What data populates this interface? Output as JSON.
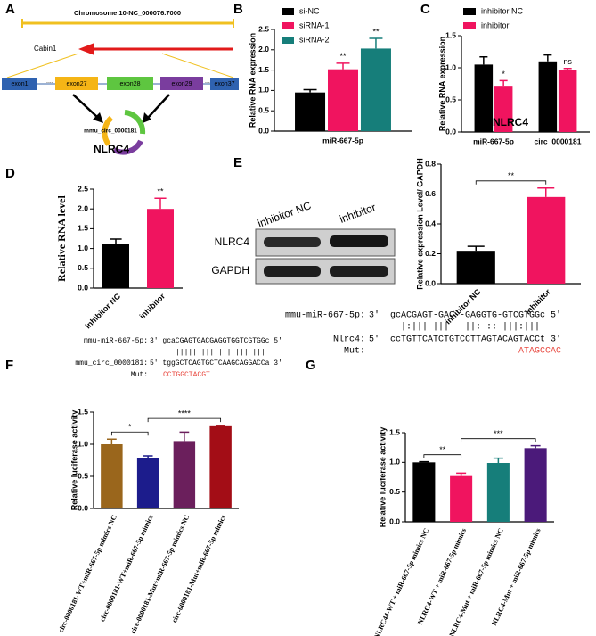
{
  "panel_labels": [
    "A",
    "B",
    "C",
    "D",
    "E",
    "F",
    "G"
  ],
  "panel_a": {
    "chromosome": "Chromosome 10-NC_000076.7000",
    "gene": "Cabin1",
    "exons": [
      "exon1",
      "....",
      "exon27",
      "exon28",
      "exon29",
      "....",
      "exon37"
    ],
    "circ": "mmu_circ_0000181"
  },
  "panel_e_blot": {
    "lanes": [
      "inhibitor NC",
      "inhibitor"
    ],
    "proteins": [
      "NLRC4",
      "GAPDH"
    ]
  },
  "panel_f_sequence": {
    "mirna": {
      "name": "mmu-miR-667-5p:",
      "text": "3' gcaCGAGTGACGAGGTGGTCGTGGc 5'"
    },
    "pairing": "||||| ||||| | ||| |||",
    "target": {
      "name": "mmu_circ_0000181:",
      "text": "5' tggGCTCAGTGCTCAAGCAGGACCa 3'"
    },
    "mut": {
      "name": "Mut:",
      "text": "CCTGGCTACGT"
    }
  },
  "panel_g_sequence": {
    "mirna": {
      "name": "mmu-miR-667-5p:",
      "text": "3'  gcACGAGT-GAC--GAGGTG-GTCGTGGc 5'"
    },
    "pairing": "|:||| |||   ||: :: |||:|||",
    "target": {
      "name": "Nlrc4:",
      "text": "5'  ccTGTTCATCTGTCCTTAGTACAGTACCt 3'"
    },
    "mut": {
      "name": "Mut:",
      "text": "ATAGCCAC"
    }
  },
  "chart_data": [
    {
      "type": "bar",
      "ylabel": "Relative RNA expression",
      "categories": [
        "miR-667-5p"
      ],
      "series": [
        {
          "name": "si-NC",
          "color": "#000000",
          "values": [
            0.95
          ],
          "errors": [
            0.07
          ],
          "significance": [
            null
          ]
        },
        {
          "name": "siRNA-1",
          "color": "#f0145f",
          "values": [
            1.52
          ],
          "errors": [
            0.15
          ],
          "significance": [
            "**"
          ]
        },
        {
          "name": "siRNA-2",
          "color": "#167e7a",
          "values": [
            2.03
          ],
          "errors": [
            0.25
          ],
          "significance": [
            "**"
          ]
        }
      ],
      "ylim": [
        0,
        2.5
      ],
      "yticks": [
        {
          "value": 0,
          "label": "0.0"
        },
        0.5,
        {
          "value": 1,
          "label": "1.0"
        },
        1.5,
        {
          "value": 2,
          "label": "2.0"
        },
        2.5
      ]
    },
    {
      "type": "bar",
      "ylabel": "Relative RNA expression",
      "categories": [
        "miR-667-5p",
        "circ_0000181"
      ],
      "series": [
        {
          "name": "inhibitor NC",
          "color": "#000000",
          "values": [
            1.05,
            1.1
          ],
          "errors": [
            0.12,
            0.1
          ],
          "significance": [
            null,
            null
          ]
        },
        {
          "name": "inhibitor",
          "color": "#f0145f",
          "values": [
            0.72,
            0.97
          ],
          "errors": [
            0.08,
            0.02
          ],
          "significance": [
            "*",
            "ns"
          ]
        }
      ],
      "ylim": [
        0,
        1.5
      ],
      "yticks": [
        {
          "value": 0,
          "label": "0.0"
        },
        0.5,
        {
          "value": 1,
          "label": "1.0"
        },
        1.5
      ]
    },
    {
      "type": "bar",
      "title": "NLRC4",
      "ylabel": "Relative RNA level",
      "categories": [
        "inhibitor NC",
        "inhibitor"
      ],
      "values": [
        1.12,
        2.0
      ],
      "errors": [
        0.12,
        0.27
      ],
      "colors": [
        "#000000",
        "#f0145f"
      ],
      "significance": [
        null,
        "**"
      ],
      "ylim": [
        0,
        2.5
      ],
      "yticks": [
        {
          "value": 0,
          "label": "0.0"
        },
        0.5,
        {
          "value": 1,
          "label": "1.0"
        },
        1.5,
        {
          "value": 2,
          "label": "2.0"
        },
        2.5
      ]
    },
    {
      "type": "bar",
      "title": "NLRC4",
      "ylabel": "Relative expression Level/ GAPDH",
      "categories": [
        "inhibitor NC",
        "inhibitor"
      ],
      "values": [
        0.22,
        0.58
      ],
      "errors": [
        0.03,
        0.06
      ],
      "colors": [
        "#000000",
        "#f0145f"
      ],
      "brackets": [
        {
          "label": "**",
          "span": [
            0,
            1
          ]
        }
      ],
      "ylim": [
        0,
        0.8
      ],
      "yticks": [
        {
          "value": 0,
          "label": "0.0"
        },
        0.2,
        0.4,
        0.6,
        0.8
      ]
    },
    {
      "type": "bar",
      "ylabel": "Relative luciferase activity",
      "categories": [
        "circ-0000181-WT+miR-667-5p mimics NC",
        "circ-0000181-WT+miR-667-5p mimics",
        "circ-0000181-Mut+miR-667-5p mimics NC",
        "circ-0000181-Mut+miR-667-5p mimics"
      ],
      "values": [
        1.0,
        0.79,
        1.05,
        1.28
      ],
      "errors": [
        0.08,
        0.03,
        0.14,
        0.01
      ],
      "colors": [
        "#9a661c",
        "#1c1c8c",
        "#6b1f5c",
        "#a30d16"
      ],
      "brackets": [
        {
          "label": "*",
          "span": [
            0,
            1
          ]
        },
        {
          "label": "****",
          "span": [
            1,
            3
          ]
        }
      ],
      "ylim": [
        0,
        1.5
      ],
      "yticks": [
        {
          "value": 0,
          "label": "0.0"
        },
        0.5,
        {
          "value": 1,
          "label": "1.0"
        },
        1.5
      ]
    },
    {
      "type": "bar",
      "ylabel": "Relative luciferase activity",
      "categories": [
        "NLRC44-WT + miR-667-5p mimics NC",
        "NLRC4-WT + miR-667-5p mimics",
        "NLRC4-Mut + miR-667-5p mimics NC",
        "NLRC4-Mut + miR-667-5p mimics"
      ],
      "values": [
        1.0,
        0.77,
        0.99,
        1.24
      ],
      "errors": [
        0.01,
        0.05,
        0.08,
        0.04
      ],
      "colors": [
        "#000000",
        "#f0145f",
        "#167e7a",
        "#4b1a7a"
      ],
      "brackets": [
        {
          "label": "**",
          "span": [
            0,
            1
          ]
        },
        {
          "label": "***",
          "span": [
            1,
            3
          ]
        }
      ],
      "ylim": [
        0,
        1.5
      ],
      "yticks": [
        {
          "value": 0,
          "label": "0.0"
        },
        0.5,
        {
          "value": 1,
          "label": "1.0"
        },
        1.5
      ]
    }
  ]
}
